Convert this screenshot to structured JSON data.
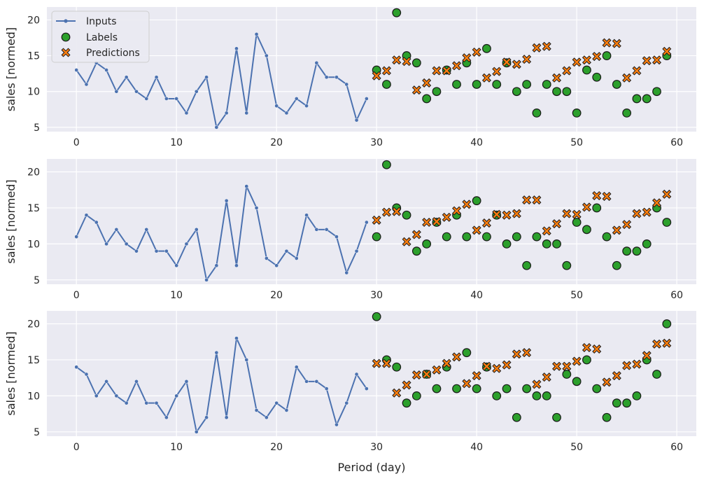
{
  "chart_data": [
    {
      "type": "line",
      "ylabel": "sales [normed]",
      "xlabel": "",
      "xlim": [
        -2.95,
        61.95
      ],
      "ylim": [
        4.4,
        21.8
      ],
      "xticks": [
        "0",
        "10",
        "20",
        "30",
        "40",
        "50",
        "60"
      ],
      "yticks": [
        "5",
        "10",
        "15",
        "20"
      ],
      "legend": {
        "position": "top-left",
        "entries": [
          "Inputs",
          "Labels",
          "Predictions"
        ]
      },
      "inputs": {
        "x": [
          0,
          1,
          2,
          3,
          4,
          5,
          6,
          7,
          8,
          9,
          10,
          11,
          12,
          13,
          14,
          15,
          16,
          17,
          18,
          19,
          20,
          21,
          22,
          23,
          24,
          25,
          26,
          27,
          28,
          29
        ],
        "values": [
          13,
          11,
          14,
          13,
          10,
          12,
          10,
          9,
          12,
          9,
          9,
          7,
          10,
          12,
          5,
          7,
          16,
          7,
          18,
          15,
          8,
          7,
          9,
          8,
          14,
          12,
          12,
          11,
          6,
          9
        ]
      },
      "labels": {
        "x": [
          30,
          31,
          32,
          33,
          34,
          35,
          36,
          37,
          38,
          39,
          40,
          41,
          42,
          43,
          44,
          45,
          46,
          47,
          48,
          49,
          50,
          51,
          52,
          53,
          54,
          55,
          56,
          57,
          58,
          59
        ],
        "values": [
          13,
          11,
          21,
          15,
          14,
          9,
          10,
          13,
          11,
          14,
          11,
          16,
          11,
          14,
          10,
          11,
          7,
          11,
          10,
          10,
          7,
          13,
          12,
          15,
          11,
          7,
          9,
          9,
          10,
          15
        ]
      },
      "predictions": {
        "x": [
          30,
          31,
          32,
          33,
          34,
          35,
          36,
          37,
          38,
          39,
          40,
          41,
          42,
          43,
          44,
          45,
          46,
          47,
          48,
          49,
          50,
          51,
          52,
          53,
          54,
          55,
          56,
          57,
          58,
          59
        ],
        "values": [
          12.2,
          12.9,
          14.4,
          14.2,
          10.2,
          11.2,
          12.9,
          12.9,
          13.6,
          14.7,
          15.5,
          11.9,
          12.8,
          14.1,
          13.8,
          14.5,
          16.1,
          16.3,
          11.9,
          12.9,
          14.1,
          14.4,
          14.9,
          16.8,
          16.7,
          11.9,
          12.9,
          14.3,
          14.4,
          15.6
        ]
      }
    },
    {
      "type": "line",
      "ylabel": "sales [normed]",
      "xlabel": "",
      "xlim": [
        -2.95,
        61.95
      ],
      "ylim": [
        4.4,
        21.8
      ],
      "xticks": [
        "0",
        "10",
        "20",
        "30",
        "40",
        "50",
        "60"
      ],
      "yticks": [
        "5",
        "10",
        "15",
        "20"
      ],
      "inputs": {
        "x": [
          0,
          1,
          2,
          3,
          4,
          5,
          6,
          7,
          8,
          9,
          10,
          11,
          12,
          13,
          14,
          15,
          16,
          17,
          18,
          19,
          20,
          21,
          22,
          23,
          24,
          25,
          26,
          27,
          28,
          29
        ],
        "values": [
          11,
          14,
          13,
          10,
          12,
          10,
          9,
          12,
          9,
          9,
          7,
          10,
          12,
          5,
          7,
          16,
          7,
          18,
          15,
          8,
          7,
          9,
          8,
          14,
          12,
          12,
          11,
          6,
          9,
          13
        ]
      },
      "labels": {
        "x": [
          30,
          31,
          32,
          33,
          34,
          35,
          36,
          37,
          38,
          39,
          40,
          41,
          42,
          43,
          44,
          45,
          46,
          47,
          48,
          49,
          50,
          51,
          52,
          53,
          54,
          55,
          56,
          57,
          58,
          59
        ],
        "values": [
          11,
          21,
          15,
          14,
          9,
          10,
          13,
          11,
          14,
          11,
          16,
          11,
          14,
          10,
          11,
          7,
          11,
          10,
          10,
          7,
          13,
          12,
          15,
          11,
          7,
          9,
          9,
          10,
          15,
          13
        ]
      },
      "predictions": {
        "x": [
          30,
          31,
          32,
          33,
          34,
          35,
          36,
          37,
          38,
          39,
          40,
          41,
          42,
          43,
          44,
          45,
          46,
          47,
          48,
          49,
          50,
          51,
          52,
          53,
          54,
          55,
          56,
          57,
          58,
          59
        ],
        "values": [
          13.3,
          14.4,
          14.5,
          10.3,
          11.3,
          13.0,
          13.1,
          13.7,
          14.6,
          15.5,
          11.9,
          12.9,
          14.1,
          14.0,
          14.2,
          16.1,
          16.1,
          11.8,
          12.8,
          14.2,
          14.1,
          15.1,
          16.7,
          16.6,
          11.9,
          12.7,
          14.2,
          14.4,
          15.7,
          16.9
        ]
      }
    },
    {
      "type": "line",
      "ylabel": "sales [normed]",
      "xlabel": "Period (day)",
      "xlim": [
        -2.95,
        61.95
      ],
      "ylim": [
        4.4,
        21.8
      ],
      "xticks": [
        "0",
        "10",
        "20",
        "30",
        "40",
        "50",
        "60"
      ],
      "yticks": [
        "5",
        "10",
        "15",
        "20"
      ],
      "inputs": {
        "x": [
          0,
          1,
          2,
          3,
          4,
          5,
          6,
          7,
          8,
          9,
          10,
          11,
          12,
          13,
          14,
          15,
          16,
          17,
          18,
          19,
          20,
          21,
          22,
          23,
          24,
          25,
          26,
          27,
          28,
          29
        ],
        "values": [
          14,
          13,
          10,
          12,
          10,
          9,
          12,
          9,
          9,
          7,
          10,
          12,
          5,
          7,
          16,
          7,
          18,
          15,
          8,
          7,
          9,
          8,
          14,
          12,
          12,
          11,
          6,
          9,
          13,
          11
        ]
      },
      "labels": {
        "x": [
          30,
          31,
          32,
          33,
          34,
          35,
          36,
          37,
          38,
          39,
          40,
          41,
          42,
          43,
          44,
          45,
          46,
          47,
          48,
          49,
          50,
          51,
          52,
          53,
          54,
          55,
          56,
          57,
          58,
          59
        ],
        "values": [
          21,
          15,
          14,
          9,
          10,
          13,
          11,
          14,
          11,
          16,
          11,
          14,
          10,
          11,
          7,
          11,
          10,
          10,
          7,
          13,
          12,
          15,
          11,
          7,
          9,
          9,
          10,
          15,
          13,
          20
        ]
      },
      "predictions": {
        "x": [
          30,
          31,
          32,
          33,
          34,
          35,
          36,
          37,
          38,
          39,
          40,
          41,
          42,
          43,
          44,
          45,
          46,
          47,
          48,
          49,
          50,
          51,
          52,
          53,
          54,
          55,
          56,
          57,
          58,
          59
        ],
        "values": [
          14.5,
          14.5,
          10.4,
          11.5,
          12.9,
          13.0,
          13.6,
          14.5,
          15.4,
          11.7,
          12.8,
          14.1,
          13.8,
          14.3,
          15.8,
          16.0,
          11.6,
          12.6,
          14.1,
          14.1,
          14.8,
          16.7,
          16.5,
          11.9,
          12.8,
          14.2,
          14.4,
          15.6,
          17.2,
          17.3
        ]
      }
    }
  ],
  "styles": {
    "background": "#eaeaf2",
    "grid": "#ffffff",
    "inputs_color": "#4c72b0",
    "labels_color": "#2ca02c",
    "predictions_color": "#ff7f0e",
    "marker_edge": "#1a1a1a"
  }
}
